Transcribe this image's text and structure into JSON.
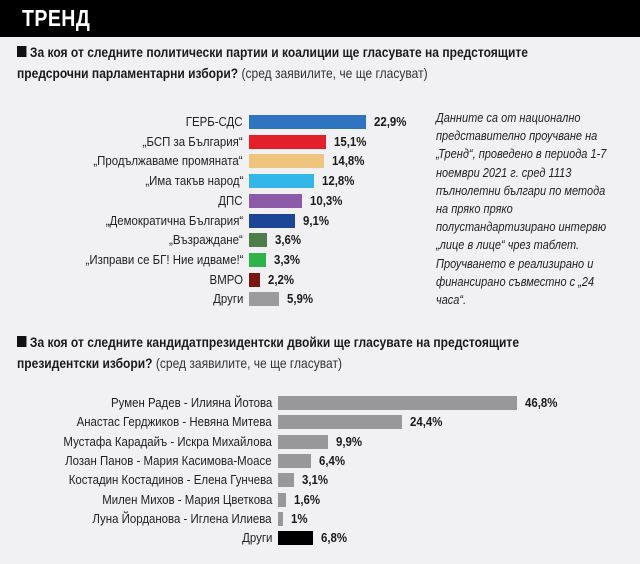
{
  "header": {
    "title": "ТРЕНД"
  },
  "section1": {
    "question_bold": "За коя от следните политически партии и коалиции ще гласувате на предстоящите",
    "question_bold_2": "предсрочни парламентарни избори?",
    "question_note": "(сред заявилите, че ще гласуват)"
  },
  "info_text": "Данните са от национално представително проучване на „Тренд“, проведено в периода 1-7 ноември 2021 г. сред 1113 пълнолетни българи по метода на пряко пряко полустандартизирано интервю „лице в лице“ чрез таблет. Проучването е реализирано и финансирано съвместно с „24 часа“.",
  "section2": {
    "question_bold": "За коя от следните кандидатпрезидентски двойки ще гласувате на предстоящите",
    "question_bold_2": "президентски избори?",
    "question_note": "(сред заявилите, че ще гласуват)"
  },
  "chart_data": [
    {
      "type": "bar",
      "orientation": "horizontal",
      "title": "За коя от следните политически партии и коалиции ще гласувате на предстоящите предсрочни парламентарни избори?",
      "categories": [
        "ГЕРБ-СДС",
        "„БСП за България“",
        "„Продължаваме промяната“",
        "„Има такъв народ“",
        "ДПС",
        "„Демократична България“",
        "„Възраждане“",
        "„Изправи се БГ! Ние идваме!“",
        "ВМРО",
        "Други"
      ],
      "values": [
        22.9,
        15.1,
        14.8,
        12.8,
        10.3,
        9.1,
        3.6,
        3.3,
        2.2,
        5.9
      ],
      "labels": [
        "22,9%",
        "15,1%",
        "14,8%",
        "12,8%",
        "10,3%",
        "9,1%",
        "3,6%",
        "3,3%",
        "2,2%",
        "5,9%"
      ],
      "colors": [
        "#2e74c0",
        "#e3202a",
        "#efc47c",
        "#33b7e8",
        "#8c5ba8",
        "#1d4596",
        "#4f7d49",
        "#2db34a",
        "#7a1612",
        "#9b9b9d"
      ],
      "unit": "%"
    },
    {
      "type": "bar",
      "orientation": "horizontal",
      "title": "За коя от следните кандидатпрезидентски двойки ще гласувате на предстоящите президентски избори?",
      "categories": [
        "Румен Радев - Илияна Йотова",
        "Анастас Герджиков - Невяна Митева",
        "Мустафа Карадайъ - Искра Михайлова",
        "Лозан Панов - Мария Касимова-Моасе",
        "Костадин Костадинов - Елена Гунчева",
        "Милен Михов - Мария Цветкова",
        "Луна Йорданова - Иглена Илиева",
        "Други"
      ],
      "values": [
        46.8,
        24.4,
        9.9,
        6.4,
        3.1,
        1.6,
        1,
        6.8
      ],
      "labels": [
        "46,8%",
        "24,4%",
        "9,9%",
        "6,4%",
        "3,1%",
        "1,6%",
        "1%",
        "6,8%"
      ],
      "colors": [
        "#98989a",
        "#98989a",
        "#98989a",
        "#98989a",
        "#98989a",
        "#98989a",
        "#98989a",
        "#000000"
      ],
      "unit": "%"
    }
  ]
}
